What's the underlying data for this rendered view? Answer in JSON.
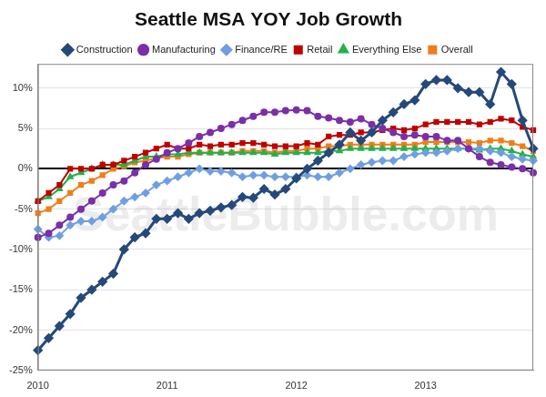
{
  "chart_data": {
    "type": "line",
    "title": "Seattle MSA YOY Job Growth",
    "watermark": "SeattleBubble.com",
    "categories": [
      "2010",
      null,
      null,
      null,
      null,
      null,
      null,
      null,
      null,
      null,
      null,
      null,
      "2011",
      null,
      null,
      null,
      null,
      null,
      null,
      null,
      null,
      null,
      null,
      null,
      "2012",
      null,
      null,
      null,
      null,
      null,
      null,
      null,
      null,
      null,
      null,
      null,
      "2013",
      null,
      null,
      null,
      null,
      null,
      null,
      null,
      null,
      null,
      null
    ],
    "series": [
      {
        "name": "Construction",
        "color": "#25497a",
        "marker": "diamond",
        "values": [
          -22.5,
          -21,
          -19.5,
          -18,
          -16,
          -15,
          -14,
          -13,
          -10,
          -8.5,
          -8,
          -6.2,
          -6.2,
          -5.5,
          -6.2,
          -5.5,
          -5.2,
          -4.8,
          -4.5,
          -3.5,
          -3.6,
          -2.5,
          -3.2,
          -2.5,
          -1.2,
          0,
          1,
          2,
          3,
          4.5,
          3.5,
          4.5,
          6,
          7,
          8,
          8.5,
          10.5,
          11,
          11,
          10,
          9.5,
          9.5,
          8,
          12,
          10.5,
          6,
          2.5
        ]
      },
      {
        "name": "Manufacturing",
        "color": "#7b2fa8",
        "marker": "circle",
        "values": [
          -8.5,
          -8,
          -7,
          -6,
          -5,
          -4,
          -3,
          -2,
          -1.5,
          -0.5,
          0.5,
          1.2,
          2,
          2.5,
          3.2,
          4,
          4.5,
          5,
          5.5,
          6,
          6.5,
          7,
          7,
          7.2,
          7.3,
          7.2,
          6.5,
          6.3,
          6,
          5.8,
          6.2,
          5.5,
          5,
          4.5,
          4,
          4.2,
          4,
          4,
          3.5,
          3.5,
          2.5,
          1.5,
          0.8,
          0.5,
          0.2,
          0,
          -0.5
        ]
      },
      {
        "name": "Finance/RE",
        "color": "#6f9fe0",
        "marker": "diamond",
        "values": [
          -7.5,
          -8.5,
          -8.3,
          -7,
          -6.5,
          -6.5,
          -6,
          -5,
          -4,
          -3.5,
          -3,
          -2,
          -1.5,
          -1,
          -0.5,
          0,
          -0.3,
          -0.3,
          -0.5,
          -1,
          -0.8,
          -0.8,
          -1,
          -1,
          -1,
          -0.8,
          -1,
          -1,
          -0.5,
          0,
          0.5,
          0.8,
          1,
          1,
          1.5,
          1.8,
          2,
          2,
          2.2,
          2.5,
          2.5,
          2.5,
          2.2,
          2,
          1.5,
          1.2,
          1
        ]
      },
      {
        "name": "Retail",
        "color": "#c00000",
        "marker": "square",
        "values": [
          -4,
          -3,
          -2,
          0,
          0,
          0,
          0.5,
          0.5,
          1,
          1.5,
          2,
          2.5,
          3,
          2.5,
          2.5,
          3,
          2.8,
          3,
          3,
          3.2,
          3.2,
          3,
          2.8,
          2.8,
          2.8,
          3.2,
          3,
          4,
          4.2,
          4.2,
          4.5,
          4.5,
          4.8,
          5,
          4.8,
          5,
          5.5,
          5.8,
          5.8,
          5.8,
          5.8,
          5.5,
          5.8,
          6.2,
          6,
          5.2,
          4.8
        ]
      },
      {
        "name": "Everything Else",
        "color": "#22b14c",
        "marker": "triangle",
        "values": [
          -4,
          -3.5,
          -2.5,
          -1,
          -0.5,
          0,
          0.5,
          0.5,
          0.5,
          1,
          1.5,
          1.5,
          1.8,
          1.8,
          2,
          2,
          2,
          2,
          2,
          2,
          2,
          2,
          1.8,
          2,
          2,
          2,
          2,
          2.2,
          2.2,
          2.5,
          2.5,
          2.5,
          2.5,
          2.5,
          2.5,
          2.5,
          2.5,
          2.5,
          2.5,
          2.5,
          2.5,
          2.3,
          2.5,
          2.5,
          2.2,
          1.8,
          1.5
        ]
      },
      {
        "name": "Overall",
        "color": "#f07d1a",
        "marker": "square",
        "values": [
          -5.5,
          -5,
          -4,
          -3,
          -2,
          -1.5,
          -0.8,
          0,
          0.3,
          0.8,
          1,
          1.3,
          1.5,
          1.5,
          1.8,
          2,
          2,
          2,
          2,
          2.2,
          2.2,
          2.2,
          2,
          2.2,
          2.2,
          2.5,
          2.5,
          2.8,
          2.8,
          3,
          3,
          3,
          3,
          3,
          3,
          3,
          3.3,
          3.3,
          3.3,
          3.3,
          3.3,
          3.2,
          3.5,
          3.5,
          3.2,
          2.8,
          2.2
        ]
      }
    ],
    "ylim": [
      -25,
      13
    ],
    "yticks": [
      {
        "value": -25,
        "label": "-25%"
      },
      {
        "value": -20,
        "label": "-20%"
      },
      {
        "value": -15,
        "label": "-15%"
      },
      {
        "value": -10,
        "label": "-10%"
      },
      {
        "value": -5,
        "label": "-5%"
      },
      {
        "value": 0,
        "label": "0%"
      },
      {
        "value": 5,
        "label": "5%"
      },
      {
        "value": 10,
        "label": "10%"
      }
    ],
    "grid": true,
    "legend": "top"
  }
}
